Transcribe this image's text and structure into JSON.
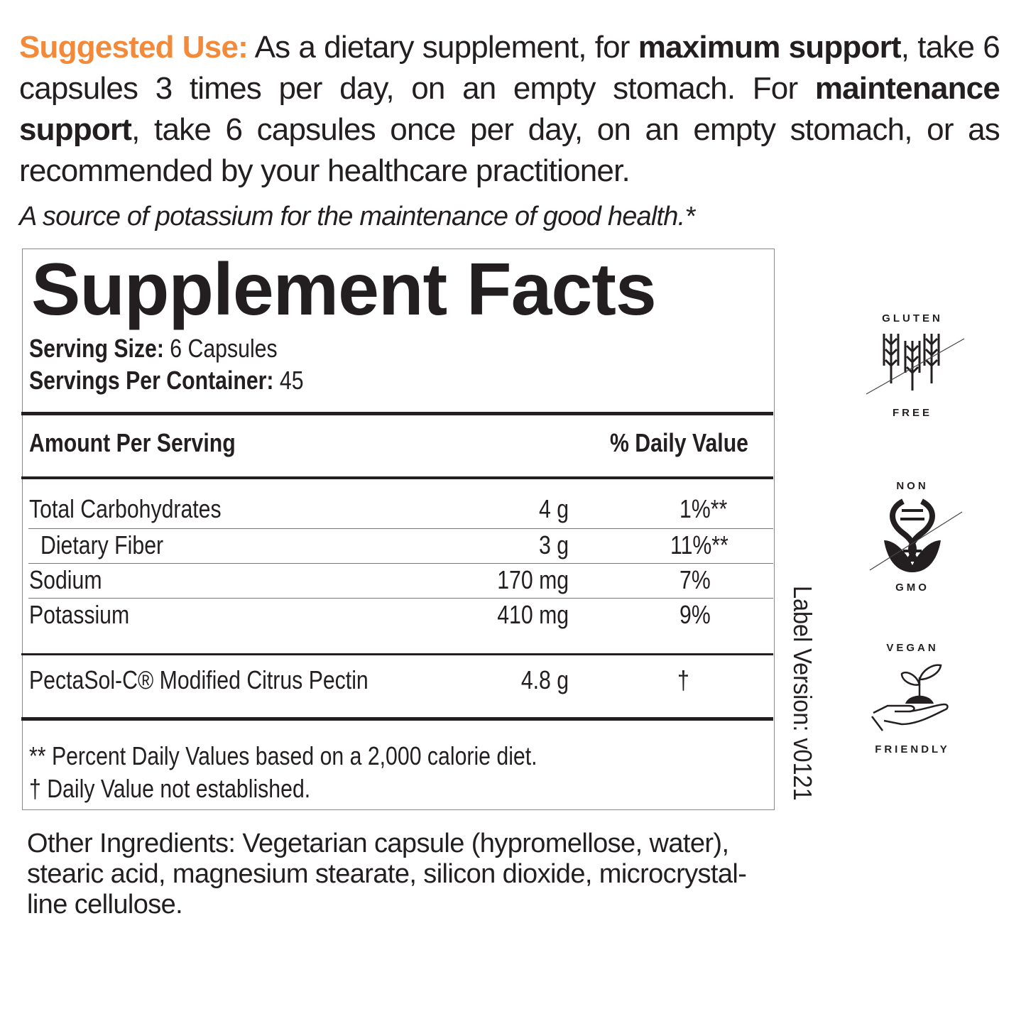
{
  "suggested_use": {
    "label": "Suggested Use:",
    "t1": " As a dietary supplement, for ",
    "b1": "maximum support",
    "t2": ", take 6 capsules 3 times per day, on an empty stomach. For ",
    "b2": "maintenance support",
    "t3": ", take 6 capsules once per day, on an empty stomach, or as recommended by your healthcare practitioner."
  },
  "claim": "A source of potassium for the maintenance of good health.*",
  "facts": {
    "title": "Supplement Facts",
    "serving_size_label": "Serving Size:",
    "serving_size": " 6 Capsules",
    "servings_label": "Servings Per Container:",
    "servings": " 45",
    "amount_header": "Amount Per Serving",
    "dv_header": "% Daily Value",
    "rows": [
      {
        "name": "Total Carbohydrates",
        "amount": "4 g",
        "dv": "1%**"
      },
      {
        "name": "Dietary Fiber",
        "amount": "3 g",
        "dv": "11%**"
      },
      {
        "name": "Sodium",
        "amount": "170 mg",
        "dv": "7%"
      },
      {
        "name": "Potassium",
        "amount": "410 mg",
        "dv": "9%"
      },
      {
        "name": "PectaSol-C® Modified Citrus Pectin",
        "amount": "4.8 g",
        "dv": "†"
      }
    ],
    "footnote1": "** Percent Daily Values based on a 2,000 calorie diet.",
    "footnote2": "† Daily Value not established."
  },
  "label_version": "Label Version: v0121",
  "other_ingredients": {
    "label": "Other Ingredients:",
    "text": " Vegetarian capsule (hypromellose, water), stearic acid, magnesium stearate, silicon dioxide, microcrystal-line cellulose."
  },
  "badges": [
    {
      "top": "GLUTEN",
      "bottom": "FREE",
      "icon": "wheat-crossed-icon"
    },
    {
      "top": "NON",
      "bottom": "GMO",
      "icon": "dna-crossed-icon"
    },
    {
      "top": "VEGAN",
      "bottom": "FRIENDLY",
      "icon": "hand-sprout-icon"
    }
  ],
  "colors": {
    "accent": "#f28a3a",
    "text": "#231f20"
  }
}
